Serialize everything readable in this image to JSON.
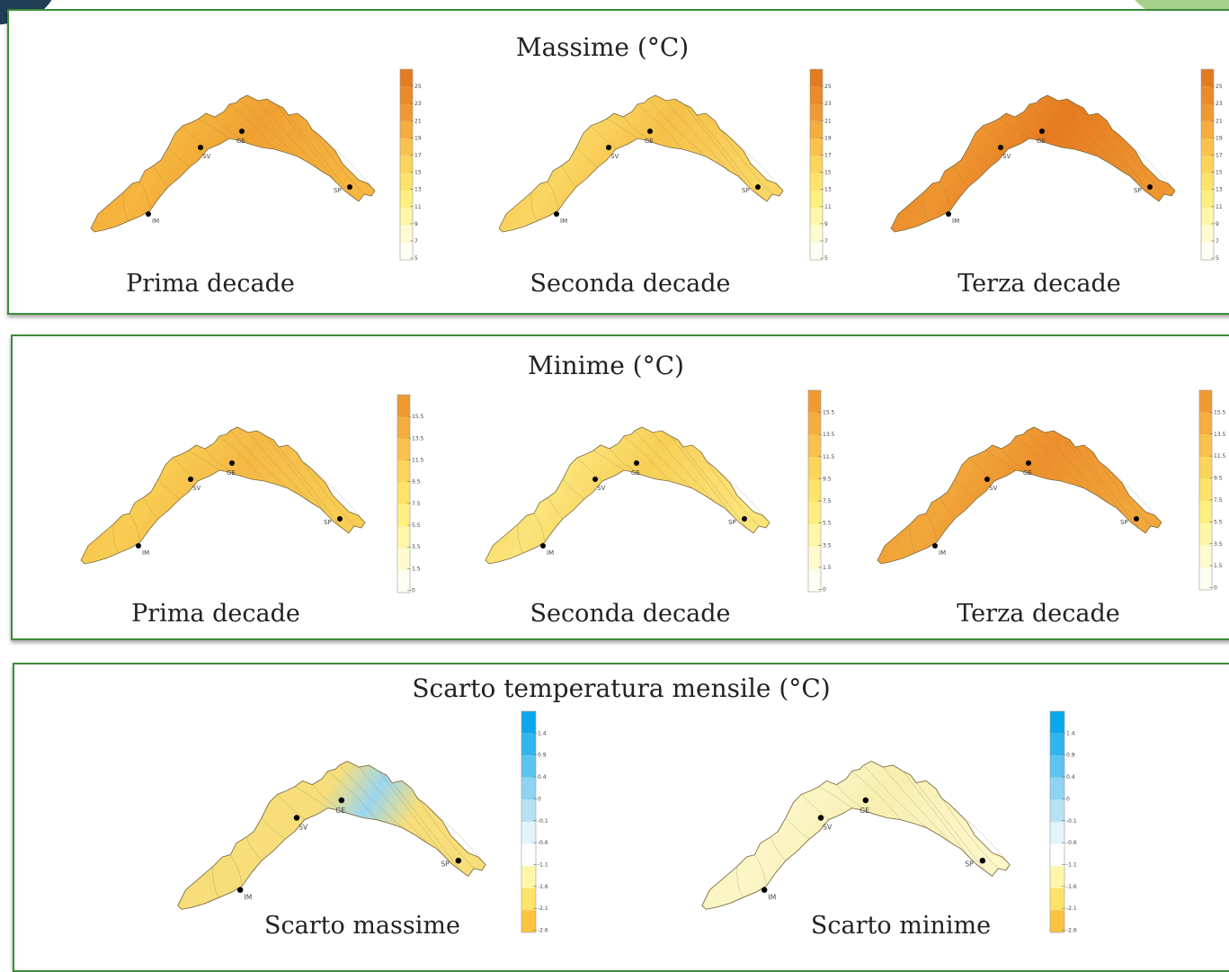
{
  "colors": {
    "panel_border": "#3d8b37",
    "max_scale": [
      "#fffef2",
      "#fffbd0",
      "#fff7a8",
      "#ffef80",
      "#fde36a",
      "#fbd45a",
      "#f8c24c",
      "#f4ad3e",
      "#ef9932",
      "#eb8a28",
      "#e37b20"
    ],
    "min_scale": [
      "#fffef2",
      "#fffbd0",
      "#fff7a8",
      "#ffef80",
      "#fde36a",
      "#fbd45a",
      "#f8c24c",
      "#f4ad3e",
      "#ef9932"
    ],
    "dev_scale": [
      "#fbc33f",
      "#fde36a",
      "#fff7a8",
      "#ffffff",
      "#e3f3fa",
      "#b7e2f4",
      "#8ed3f2",
      "#5cc3ef",
      "#31b5ee",
      "#0aa8ea"
    ]
  },
  "panels": {
    "max": {
      "title": "Massime (°C)",
      "legend_ticks": [
        "25",
        "23",
        "21",
        "19",
        "17",
        "15",
        "13",
        "11",
        "9",
        "7",
        "5"
      ],
      "maps": [
        {
          "caption": "Prima decade",
          "fill": "#f6b640",
          "tone": "#f0a030"
        },
        {
          "caption": "Seconda decade",
          "fill": "#fad662",
          "tone": "#f5c048"
        },
        {
          "caption": "Terza decade",
          "fill": "#ee9530",
          "tone": "#e67a1f"
        }
      ]
    },
    "min": {
      "title": "Minime (°C)",
      "legend_ticks": [
        "15.5",
        "13.5",
        "11.5",
        "9.5",
        "7.5",
        "5.5",
        "3.5",
        "1.5",
        "0"
      ],
      "maps": [
        {
          "caption": "Prima decade",
          "fill": "#f8cd52",
          "tone": "#f5b845"
        },
        {
          "caption": "Seconda decade",
          "fill": "#fbe47a",
          "tone": "#f7cf55"
        },
        {
          "caption": "Terza decade",
          "fill": "#f2a73a",
          "tone": "#ec8f2c"
        }
      ]
    },
    "dev": {
      "title": "Scarto temperatura mensile (°C)",
      "legend_ticks": [
        "1.4",
        "0.9",
        "0.4",
        "0",
        "-0.1",
        "-0.6",
        "-1.1",
        "-1.6",
        "-2.1",
        "-2.6"
      ],
      "maps": [
        {
          "caption": "Scarto massime",
          "fill": "#f7de7a",
          "tone": "#9ad6f0"
        },
        {
          "caption": "Scarto minime",
          "fill": "#fcf6c8",
          "tone": "#f7efb0"
        }
      ]
    }
  },
  "cities": [
    "GE",
    "SV",
    "IM",
    "SP"
  ]
}
